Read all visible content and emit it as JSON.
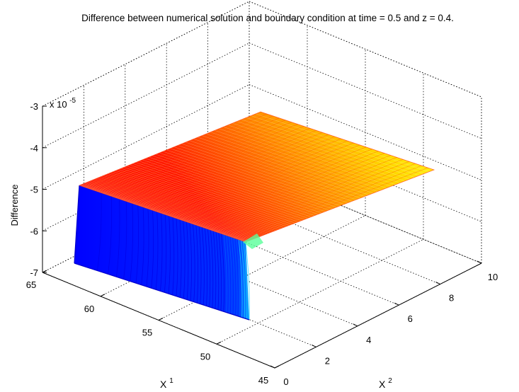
{
  "chart_data": {
    "type": "surface",
    "title": "Difference between numerical solution and boundary condition at time = 0.5 and z = 0.4.",
    "xlabel_base": "X",
    "xlabel_sup": "1",
    "ylabel_base": "X",
    "ylabel_sup": "2",
    "zlabel": "Difference",
    "z_exponent_prefix": "x 10",
    "z_exponent": "-5",
    "x1_ticks": [
      "45",
      "50",
      "55",
      "60",
      "65"
    ],
    "x1_tick_values": [
      45,
      50,
      55,
      60,
      65
    ],
    "x2_ticks": [
      "0",
      "2",
      "4",
      "6",
      "8",
      "10"
    ],
    "x2_tick_values": [
      0,
      2,
      4,
      6,
      8,
      10
    ],
    "z_ticks": [
      "-7",
      "-6",
      "-5",
      "-4",
      "-3"
    ],
    "z_tick_values": [
      -7,
      -6,
      -5,
      -4,
      -3
    ],
    "xlim": [
      45,
      65
    ],
    "ylim": [
      0,
      10
    ],
    "zlim": [
      -7,
      -3
    ],
    "surface": {
      "plateau_value": -4.8,
      "plateau_at_x1_65": -4.65,
      "plateau_at_x1_50": -4.92,
      "wall_bottom_value": -7.0,
      "wall_x2_range": [
        0,
        1
      ],
      "x1_range": [
        50,
        65
      ],
      "x2_range": [
        0,
        10
      ]
    },
    "colormap": "jet",
    "grid": true
  }
}
